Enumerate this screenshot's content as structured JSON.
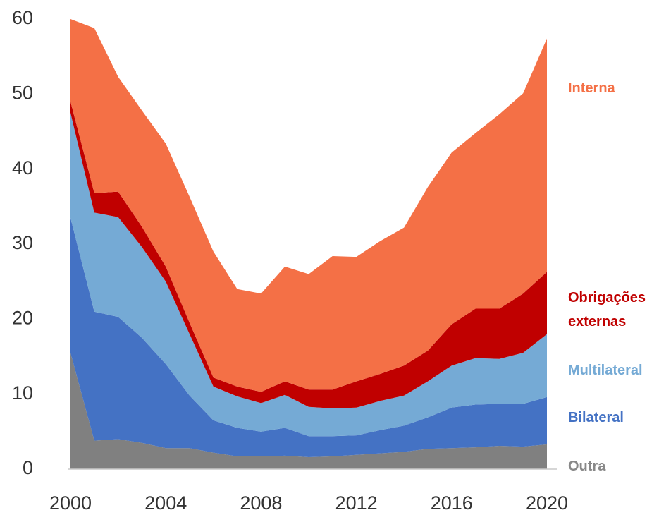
{
  "chart_data": {
    "type": "stacked_area",
    "x": [
      2000,
      2001,
      2002,
      2003,
      2004,
      2005,
      2006,
      2007,
      2008,
      2009,
      2010,
      2011,
      2012,
      2013,
      2014,
      2015,
      2016,
      2017,
      2018,
      2019,
      2020
    ],
    "xlim": [
      2000,
      2020
    ],
    "xticks": [
      2000,
      2004,
      2008,
      2012,
      2016,
      2020
    ],
    "ylim": [
      0,
      60
    ],
    "yticks": [
      0,
      10,
      20,
      30,
      40,
      50,
      60
    ],
    "series": [
      {
        "name": "Outra",
        "color": "#808080",
        "values": [
          15.5,
          3.8,
          4.0,
          3.5,
          2.8,
          2.8,
          2.2,
          1.7,
          1.7,
          1.8,
          1.6,
          1.7,
          1.9,
          2.1,
          2.3,
          2.7,
          2.8,
          2.9,
          3.1,
          3.0,
          3.3
        ]
      },
      {
        "name": "Bilateral",
        "color": "#4472c4",
        "values": [
          18.0,
          17.2,
          16.3,
          14.0,
          11.2,
          7.0,
          4.3,
          3.8,
          3.3,
          3.7,
          2.8,
          2.7,
          2.6,
          3.1,
          3.5,
          4.2,
          5.4,
          5.7,
          5.6,
          5.7,
          6.3
        ]
      },
      {
        "name": "Multilateral",
        "color": "#75aad5",
        "values": [
          14.0,
          13.2,
          13.3,
          12.1,
          11.0,
          8.2,
          4.5,
          4.2,
          3.8,
          4.4,
          3.9,
          3.7,
          3.7,
          3.9,
          4.0,
          4.8,
          5.6,
          6.2,
          6.0,
          6.8,
          8.4
        ]
      },
      {
        "name": "Obrigações externas",
        "color": "#c00000",
        "values": [
          1.5,
          2.6,
          3.4,
          2.7,
          2.0,
          1.5,
          1.2,
          1.3,
          1.5,
          1.8,
          2.3,
          2.5,
          3.5,
          3.6,
          4.0,
          4.1,
          5.5,
          6.6,
          6.7,
          7.9,
          8.3
        ]
      },
      {
        "name": "Interna",
        "color": "#f47046",
        "values": [
          11.0,
          22.0,
          15.3,
          15.5,
          16.4,
          16.8,
          16.8,
          13.0,
          13.1,
          15.3,
          15.4,
          17.8,
          16.6,
          17.7,
          18.4,
          21.8,
          22.9,
          23.4,
          25.9,
          26.7,
          31.1
        ]
      }
    ]
  }
}
